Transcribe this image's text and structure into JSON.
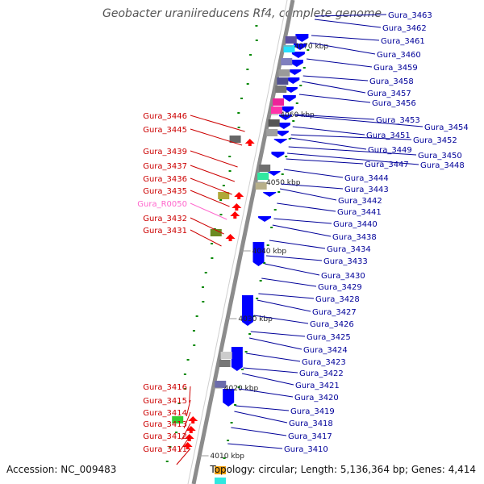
{
  "title": "Geobacter uraniireducens Rf4, complete genome",
  "accession": "Accession: NC_009483",
  "stats": "Topology: circular; Length: 5,136,364 bp; Genes: 4,414",
  "colors": {
    "backbone": "#8c8c8c",
    "rna_gene": "#ff66cc",
    "left_label": "#cc0000",
    "right_label": "#000099",
    "forward_cds": "#ff0000",
    "reverse_cds": "#0000ff",
    "gc_marker": "#008800"
  },
  "ticks": [
    "4070 kbp",
    "4060 kbp",
    "4050 kbp",
    "4040 kbp",
    "4030 kbp",
    "4020 kbp",
    "4010 kbp"
  ],
  "labels_left": [
    {
      "text": "Gura_3446",
      "type": "cds"
    },
    {
      "text": "Gura_3445",
      "type": "cds"
    },
    {
      "text": "Gura_3439",
      "type": "cds"
    },
    {
      "text": "Gura_3437",
      "type": "cds"
    },
    {
      "text": "Gura_3436",
      "type": "cds"
    },
    {
      "text": "Gura_3435",
      "type": "cds"
    },
    {
      "text": "Gura_R0050",
      "type": "rna"
    },
    {
      "text": "Gura_3432",
      "type": "cds"
    },
    {
      "text": "Gura_3431",
      "type": "cds"
    },
    {
      "text": "Gura_3416",
      "type": "cds"
    },
    {
      "text": "Gura_3415",
      "type": "cds"
    },
    {
      "text": "Gura_3414",
      "type": "cds"
    },
    {
      "text": "Gura_3413",
      "type": "cds"
    },
    {
      "text": "Gura_3412",
      "type": "cds"
    },
    {
      "text": "Gura_3411",
      "type": "cds"
    }
  ],
  "labels_right": [
    {
      "text": "Gura_3463"
    },
    {
      "text": "Gura_3462"
    },
    {
      "text": "Gura_3461"
    },
    {
      "text": "Gura_3460"
    },
    {
      "text": "Gura_3459"
    },
    {
      "text": "Gura_3458"
    },
    {
      "text": "Gura_3457"
    },
    {
      "text": "Gura_3456"
    },
    {
      "text": "Gura_3453"
    },
    {
      "text": "Gura_3454"
    },
    {
      "text": "Gura_3451"
    },
    {
      "text": "Gura_3452"
    },
    {
      "text": "Gura_3449"
    },
    {
      "text": "Gura_3450"
    },
    {
      "text": "Gura_3447"
    },
    {
      "text": "Gura_3448"
    },
    {
      "text": "Gura_3444"
    },
    {
      "text": "Gura_3443"
    },
    {
      "text": "Gura_3442"
    },
    {
      "text": "Gura_3441"
    },
    {
      "text": "Gura_3440"
    },
    {
      "text": "Gura_3438"
    },
    {
      "text": "Gura_3434"
    },
    {
      "text": "Gura_3433"
    },
    {
      "text": "Gura_3430"
    },
    {
      "text": "Gura_3429"
    },
    {
      "text": "Gura_3428"
    },
    {
      "text": "Gura_3427"
    },
    {
      "text": "Gura_3426"
    },
    {
      "text": "Gura_3425"
    },
    {
      "text": "Gura_3424"
    },
    {
      "text": "Gura_3423"
    },
    {
      "text": "Gura_3422"
    },
    {
      "text": "Gura_3421"
    },
    {
      "text": "Gura_3420"
    },
    {
      "text": "Gura_3419"
    },
    {
      "text": "Gura_3418"
    },
    {
      "text": "Gura_3417"
    },
    {
      "text": "Gura_3410"
    }
  ]
}
